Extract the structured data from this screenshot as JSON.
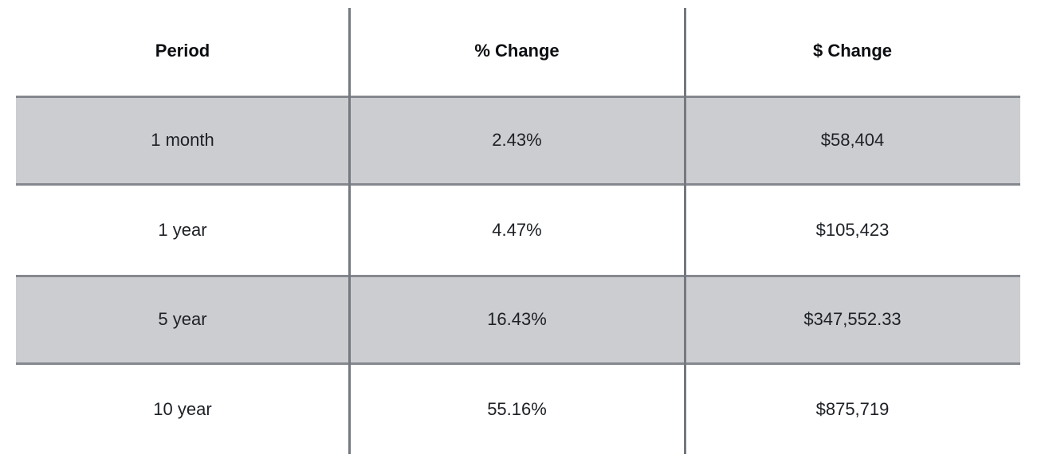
{
  "chart_data": {
    "type": "table",
    "columns": [
      "Period",
      "% Change",
      "$ Change"
    ],
    "rows": [
      [
        "1 month",
        "2.43%",
        "$58,404"
      ],
      [
        "1 year",
        "4.47%",
        "$105,423"
      ],
      [
        "5 year",
        "16.43%",
        "$347,552.33"
      ],
      [
        "10 year",
        "55.16%",
        "$875,719"
      ]
    ]
  },
  "colors": {
    "shaded_row_bg": "#cbcdd1",
    "row_border": "#85888e",
    "column_divider": "#75787e",
    "header_text": "#0c0e11",
    "body_text": "#1d2025"
  }
}
